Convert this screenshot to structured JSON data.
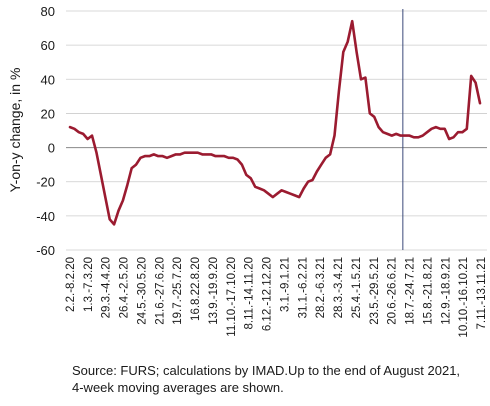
{
  "colors": {
    "series": "#9b1b30",
    "gridline": "#cccccc",
    "axis": "#888888",
    "marker_line": "#3b4a7a"
  },
  "source_note": "Source: FURS; calculations by IMAD.Up to the end of August 2021, 4-week moving averages are shown.",
  "chart_data": {
    "type": "line",
    "title": "",
    "ylabel": "Y-on-y change, in %",
    "xlabel": "",
    "ylim": [
      -60,
      80
    ],
    "yticks": [
      -60,
      -40,
      -20,
      0,
      20,
      40,
      60,
      80
    ],
    "grid": "horizontal",
    "legend": "none",
    "x_tick_labels": [
      "2.2.-8.2.20",
      "1.3.-7.3.20",
      "29.3.-4.4.20",
      "26.4.-2.5.20",
      "24.5.-30.5.20",
      "21.6.-27.6.20",
      "19.7.-25.7.20",
      "16.8.22.8.20",
      "13.9.-19.9.20",
      "11.10.-17.10.20",
      "8.11.-14.11.20",
      "6.12.-12.12.20",
      "3.1.-9.1.21",
      "31.1.-6.2.21",
      "28.2.-6.3.21",
      "28.3.-3.4.21",
      "25.4.-1.5.21",
      "23.5.-29.5.21",
      "20.6.-26.6.21",
      "18.7.-24.7.21",
      "15.8.-21.8.21",
      "12.9.-18.9.21",
      "10.10.-16.10.21",
      "7.11.-13.11.21"
    ],
    "vertical_marker_after_week": 75,
    "series": [
      {
        "values": [
          12,
          11,
          9,
          8,
          5,
          7,
          -3,
          -16,
          -29,
          -42,
          -45,
          -37,
          -31,
          -22,
          -12,
          -10,
          -6,
          -5,
          -5,
          -4,
          -5,
          -5,
          -6,
          -5,
          -4,
          -4,
          -3,
          -3,
          -3,
          -3,
          -4,
          -4,
          -4,
          -5,
          -5,
          -5,
          -6,
          -6,
          -7,
          -10,
          -16,
          -18,
          -23,
          -24,
          -25,
          -27,
          -29,
          -27,
          -25,
          -26,
          -27,
          -28,
          -29,
          -24,
          -20,
          -19,
          -14,
          -10,
          -6,
          -4,
          7,
          33,
          56,
          62,
          74,
          56,
          40,
          41,
          20,
          18,
          12,
          9,
          8,
          7,
          8,
          7,
          7,
          7,
          6,
          6,
          7,
          9,
          11,
          12,
          11,
          11,
          5,
          6,
          9,
          9,
          11,
          42,
          38,
          26
        ]
      }
    ]
  }
}
